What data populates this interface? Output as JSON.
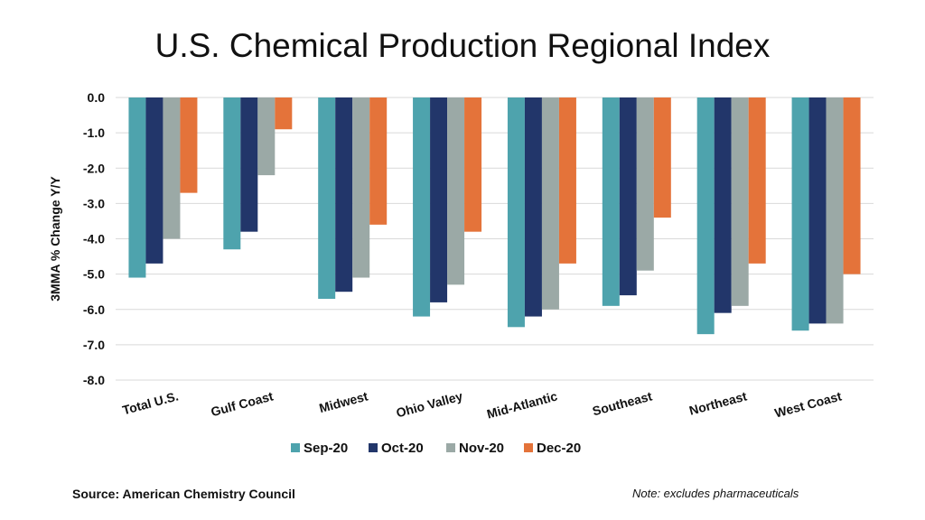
{
  "chart_data": {
    "type": "bar",
    "title": "U.S. Chemical Production Regional Index",
    "ylabel": "3MMA % Change Y/Y",
    "xlabel": "",
    "ylim": [
      -8.0,
      0.0
    ],
    "yticks": [
      "0.0",
      "-1.0",
      "-2.0",
      "-3.0",
      "-4.0",
      "-5.0",
      "-6.0",
      "-7.0",
      "-8.0"
    ],
    "grid": true,
    "legend": "bottom",
    "categories": [
      "Total U.S.",
      "Gulf Coast",
      "Midwest",
      "Ohio Valley",
      "Mid-Atlantic",
      "Southeast",
      "Northeast",
      "West Coast"
    ],
    "series": [
      {
        "name": "Sep-20",
        "color": "#4ea3ad",
        "values": [
          -5.1,
          -4.3,
          -5.7,
          -6.2,
          -6.5,
          -5.9,
          -6.7,
          -6.6
        ]
      },
      {
        "name": "Oct-20",
        "color": "#22366a",
        "values": [
          -4.7,
          -3.8,
          -5.5,
          -5.8,
          -6.2,
          -5.6,
          -6.1,
          -6.4
        ]
      },
      {
        "name": "Nov-20",
        "color": "#9ba9a6",
        "values": [
          -4.0,
          -2.2,
          -5.1,
          -5.3,
          -6.0,
          -4.9,
          -5.9,
          -6.4
        ]
      },
      {
        "name": "Dec-20",
        "color": "#e4733a",
        "values": [
          -2.7,
          -0.9,
          -3.6,
          -3.8,
          -4.7,
          -3.4,
          -4.7,
          -5.0
        ]
      }
    ]
  },
  "footer": {
    "source": "Source: American Chemistry Council",
    "note": "Note: excludes pharmaceuticals"
  }
}
